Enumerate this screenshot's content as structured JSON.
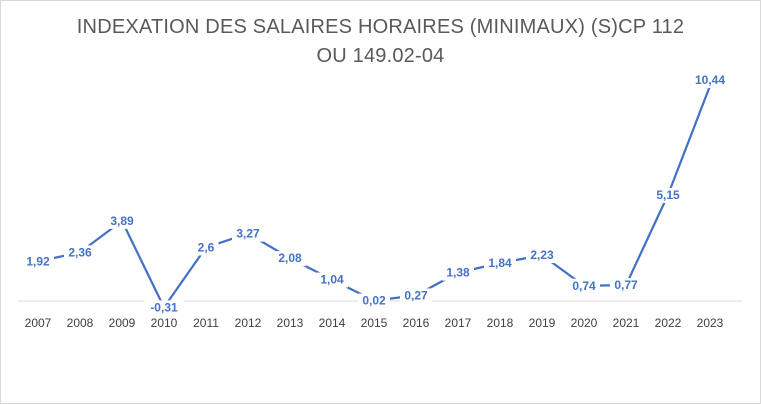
{
  "chart_data": {
    "type": "line",
    "title_line1": "INDEXATION DES SALAIRES HORAIRES (MINIMAUX) (S)CP 112",
    "title_line2": "OU 149.02-04",
    "categories": [
      "2007",
      "2008",
      "2009",
      "2010",
      "2011",
      "2012",
      "2013",
      "2014",
      "2015",
      "2016",
      "2017",
      "2018",
      "2019",
      "2020",
      "2021",
      "2022",
      "2023"
    ],
    "values": [
      1.92,
      2.36,
      3.89,
      -0.31,
      2.6,
      3.27,
      2.08,
      1.04,
      0.02,
      0.27,
      1.38,
      1.84,
      2.23,
      0.74,
      0.77,
      5.15,
      10.44
    ],
    "labels": [
      "1,92",
      "2,36",
      "3,89",
      "-0,31",
      "2,6",
      "3,27",
      "2,08",
      "1,04",
      "0,02",
      "0,27",
      "1,38",
      "1,84",
      "2,23",
      "0,74",
      "0,77",
      "5,15",
      "10,44"
    ],
    "series_color": "#4472c4",
    "grid": false,
    "legend": "none",
    "ylim": [
      -0.5,
      11
    ]
  }
}
